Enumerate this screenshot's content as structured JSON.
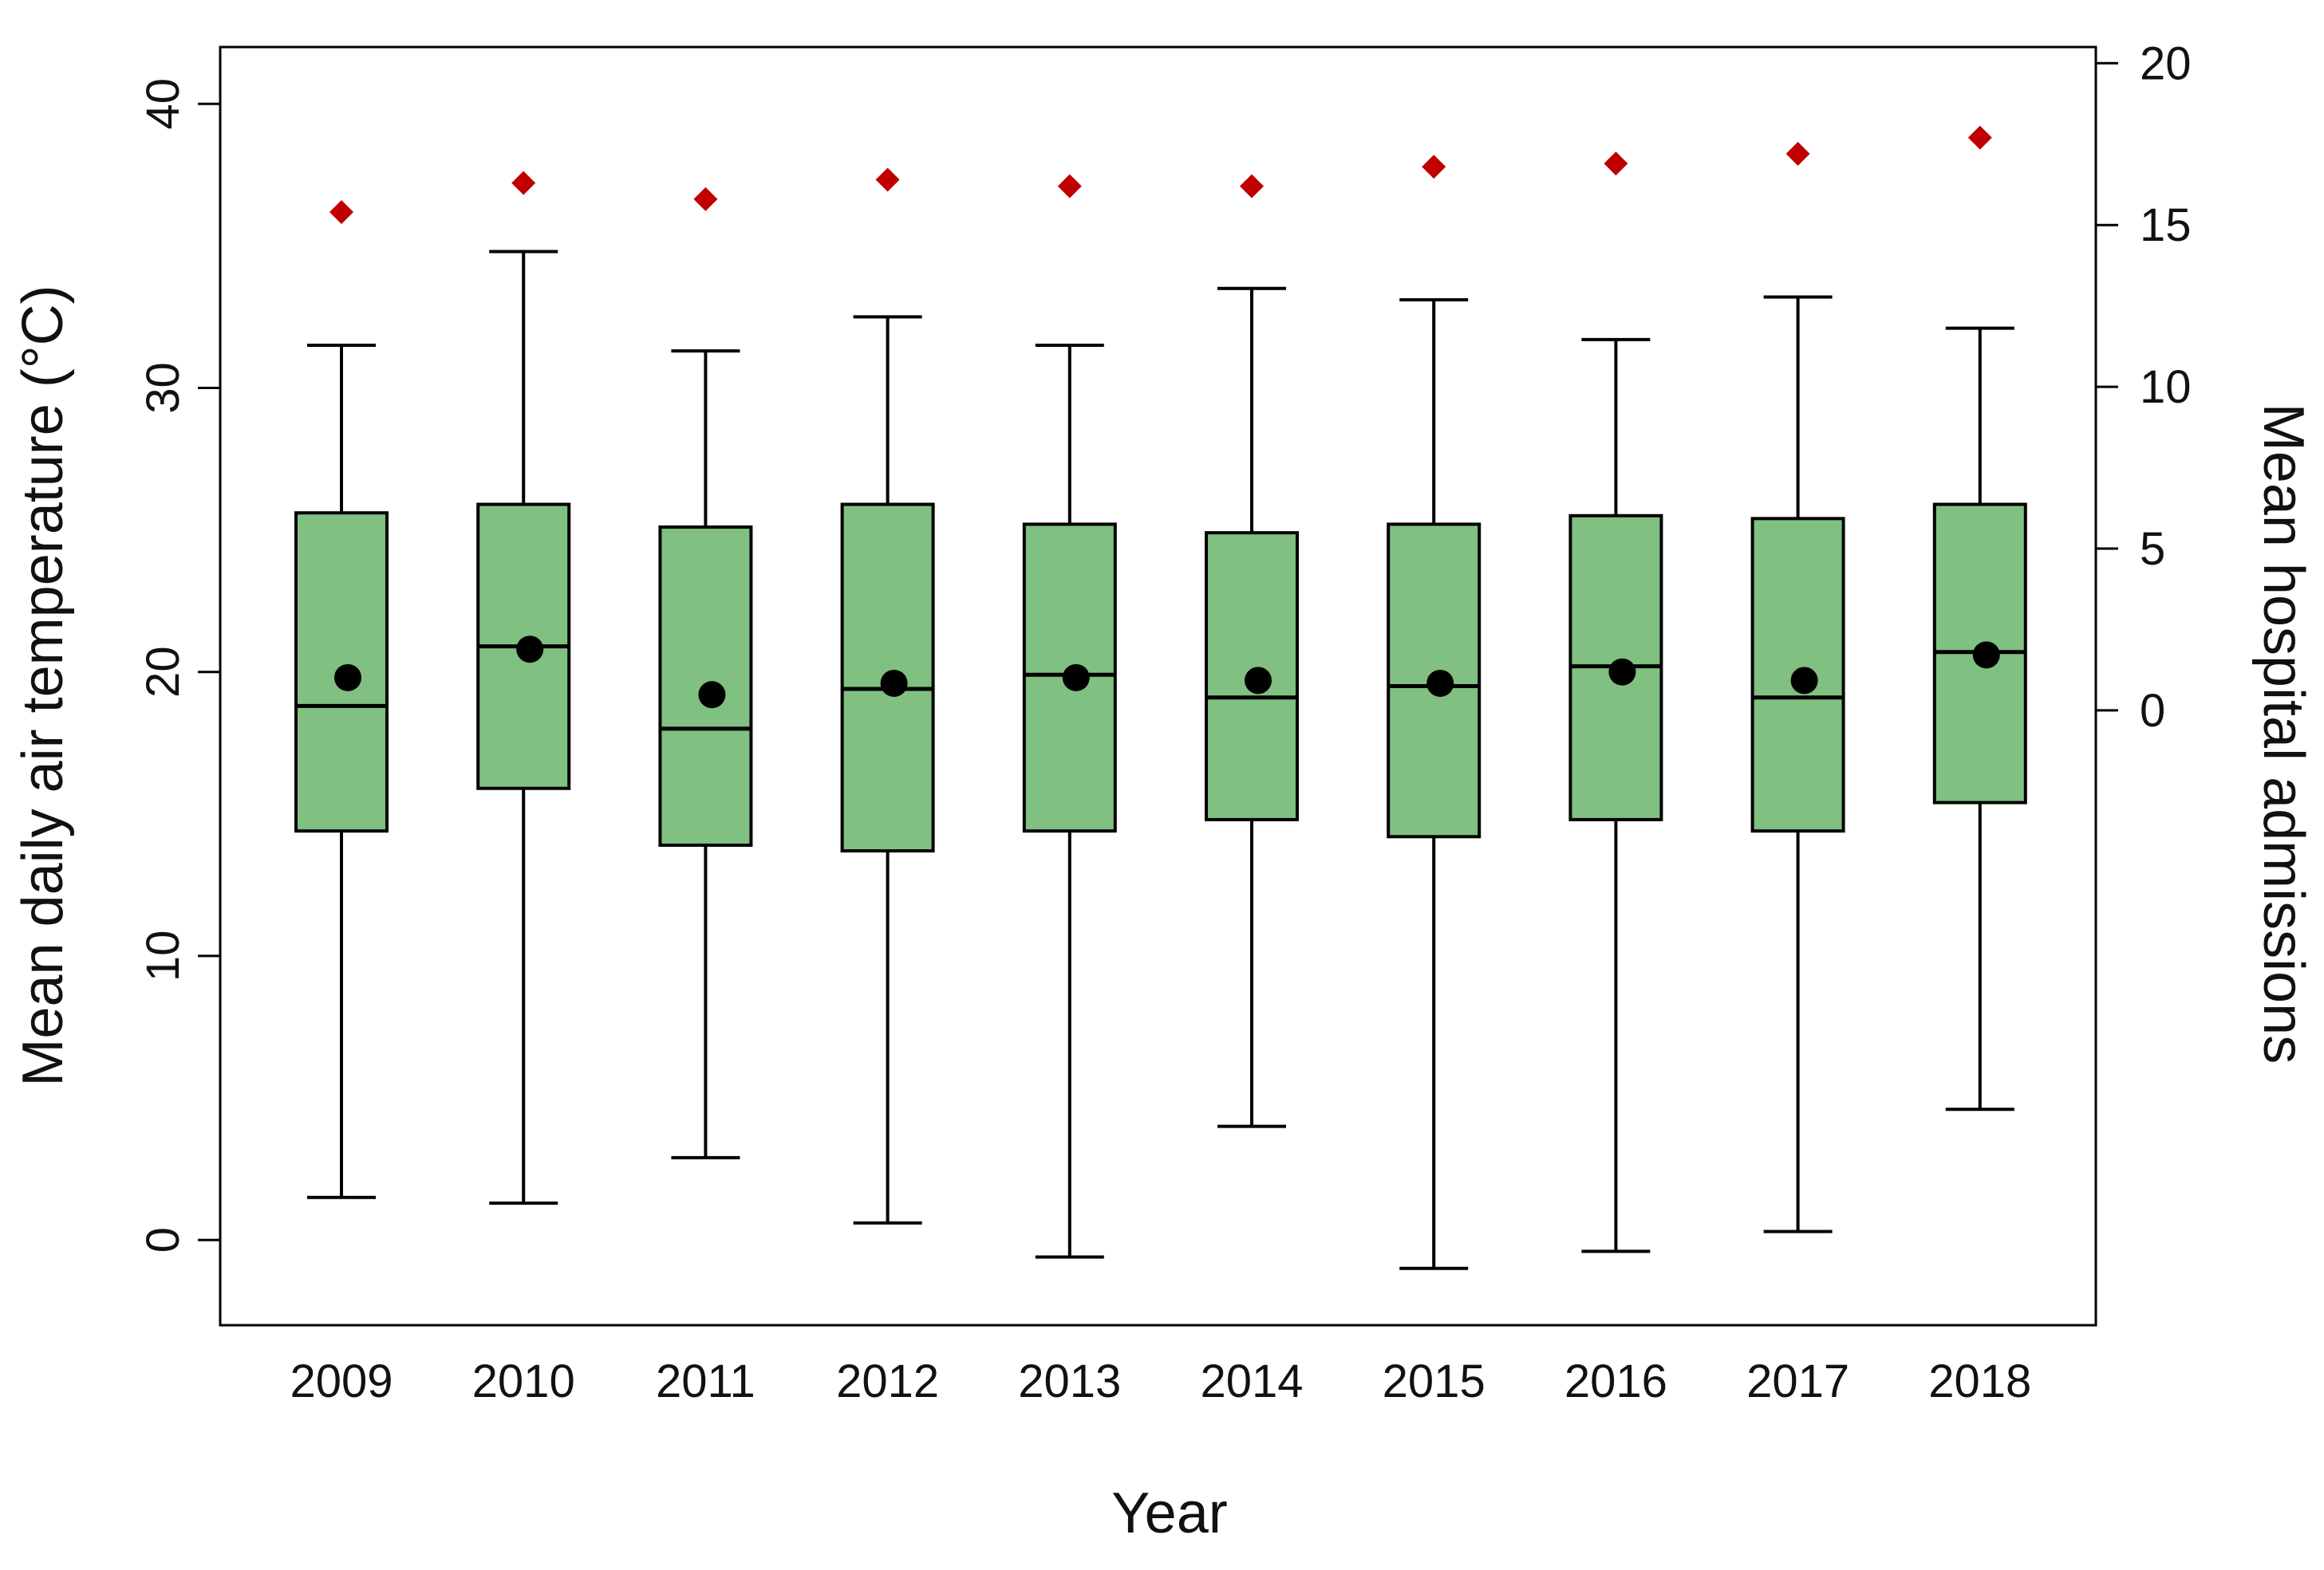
{
  "chart_data": {
    "type": "boxplot",
    "xlabel": "Year",
    "ylabel": "Mean daily air temperature (°C)",
    "y2label": "Mean hospital admissions",
    "categories": [
      "2009",
      "2010",
      "2011",
      "2012",
      "2013",
      "2014",
      "2015",
      "2016",
      "2017",
      "2018"
    ],
    "ylim": [
      -3,
      42
    ],
    "yticks": [
      0,
      10,
      20,
      30,
      40
    ],
    "y2lim": [
      -19,
      20.5
    ],
    "y2ticks": [
      0,
      5,
      10,
      15,
      20
    ],
    "grid": false,
    "legend": "none",
    "series": [
      {
        "kind": "box",
        "axis": "left",
        "color": "#80c080",
        "boxes": [
          {
            "min": 1.5,
            "q1": 14.4,
            "median": 18.8,
            "q3": 25.6,
            "max": 31.5,
            "mean": 19.8
          },
          {
            "min": 1.3,
            "q1": 15.9,
            "median": 20.9,
            "q3": 25.9,
            "max": 34.8,
            "mean": 20.8
          },
          {
            "min": 2.9,
            "q1": 13.9,
            "median": 18.0,
            "q3": 25.1,
            "max": 31.3,
            "mean": 19.2
          },
          {
            "min": 0.6,
            "q1": 13.7,
            "median": 19.4,
            "q3": 25.9,
            "max": 32.5,
            "mean": 19.6
          },
          {
            "min": -0.6,
            "q1": 14.4,
            "median": 19.9,
            "q3": 25.2,
            "max": 31.5,
            "mean": 19.8
          },
          {
            "min": 4.0,
            "q1": 14.8,
            "median": 19.1,
            "q3": 24.9,
            "max": 33.5,
            "mean": 19.7
          },
          {
            "min": -1.0,
            "q1": 14.2,
            "median": 19.5,
            "q3": 25.2,
            "max": 33.1,
            "mean": 19.6
          },
          {
            "min": -0.4,
            "q1": 14.8,
            "median": 20.2,
            "q3": 25.5,
            "max": 31.7,
            "mean": 20.0
          },
          {
            "min": 0.3,
            "q1": 14.4,
            "median": 19.1,
            "q3": 25.4,
            "max": 33.2,
            "mean": 19.7
          },
          {
            "min": 4.6,
            "q1": 15.4,
            "median": 20.7,
            "q3": 25.9,
            "max": 32.1,
            "mean": 20.6
          }
        ]
      },
      {
        "kind": "point",
        "axis": "right",
        "marker": "diamond",
        "color": "#c00000",
        "values": [
          15.4,
          16.3,
          15.8,
          16.4,
          16.2,
          16.2,
          16.8,
          16.9,
          17.2,
          17.7
        ]
      }
    ]
  }
}
